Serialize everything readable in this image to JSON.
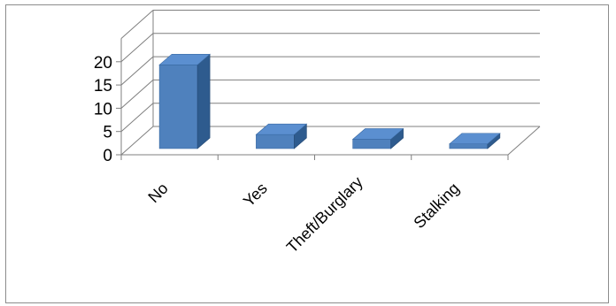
{
  "chart_data": {
    "type": "bar",
    "style": "3d-column",
    "categories": [
      "No",
      "Yes",
      "Theft/Burglary",
      "Stalking"
    ],
    "values": [
      18,
      3,
      2,
      1
    ],
    "ylim": [
      0,
      25
    ],
    "yticks": [
      0,
      5,
      10,
      15,
      20
    ],
    "grid": true,
    "legend": "none",
    "colors": {
      "bar_front": "#4f81bd",
      "bar_top": "#5b8fd0",
      "bar_side": "#2e5b8e",
      "grid": "#7f7f7f",
      "frame": "#8c8c8c"
    }
  }
}
